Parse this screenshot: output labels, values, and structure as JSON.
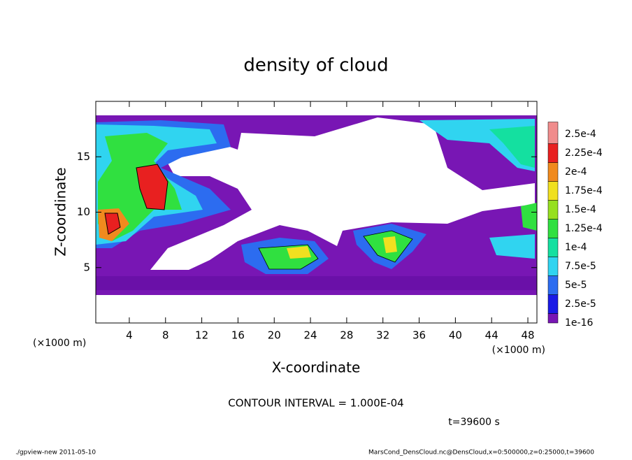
{
  "chart_data": {
    "type": "contour",
    "title": "density of cloud",
    "x_label": "X-coordinate",
    "y_label": "Z-coordinate",
    "x_unit_left": "(×1000 m)",
    "x_unit_right": "(×1000 m)",
    "xlim": [
      0.3,
      49
    ],
    "ylim": [
      0,
      20
    ],
    "xticks": [
      4,
      8,
      12,
      16,
      20,
      24,
      28,
      32,
      36,
      40,
      44,
      48
    ],
    "yticks": [
      5,
      10,
      15
    ],
    "colorbar": {
      "ticks": [
        {
          "value": 1e-16,
          "label": "1e-16"
        },
        {
          "value": 2.5e-05,
          "label": "2.5e-5"
        },
        {
          "value": 5e-05,
          "label": "5e-5"
        },
        {
          "value": 7.5e-05,
          "label": "7.5e-5"
        },
        {
          "value": 0.0001,
          "label": "1e-4"
        },
        {
          "value": 0.000125,
          "label": "1.25e-4"
        },
        {
          "value": 0.00015,
          "label": "1.5e-4"
        },
        {
          "value": 0.000175,
          "label": "1.75e-4"
        },
        {
          "value": 0.0002,
          "label": "2e-4"
        },
        {
          "value": 0.000225,
          "label": "2.25e-4"
        },
        {
          "value": 0.00025,
          "label": "2.5e-4"
        }
      ],
      "colors": [
        "#7816b4",
        "#1a1ae6",
        "#2c6cf0",
        "#30d4f0",
        "#14e0a0",
        "#30e040",
        "#96e020",
        "#f0e020",
        "#f08a1e",
        "#e82020",
        "#f08c8c"
      ]
    },
    "contour_note": "CONTOUR INTERVAL = 1.000E-04",
    "time_label": "t=39600 s",
    "footer_left": "./gpview-new  2011-05-10",
    "footer_right": "MarsCond_DensCloud.nc@DensCloud,x=0:500000,z=0:25000,t=39600"
  }
}
